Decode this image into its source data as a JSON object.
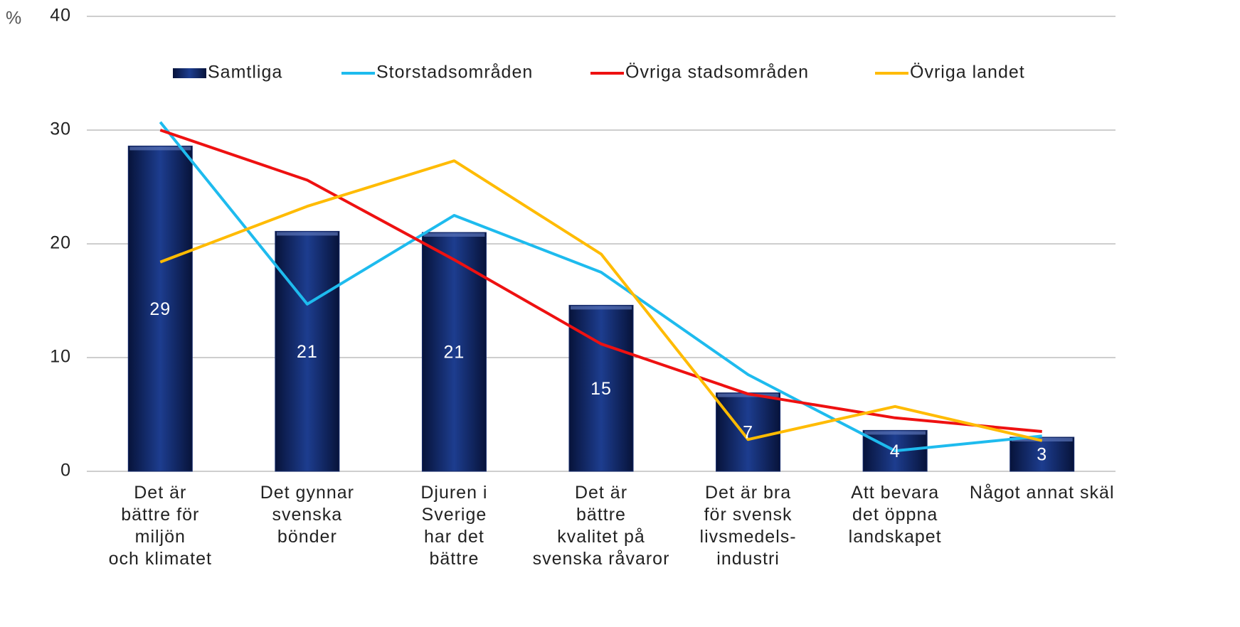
{
  "chart_data": {
    "type": "combo",
    "y_label": "%",
    "categories": [
      [
        "Det är",
        "bättre för",
        "miljön",
        "och klimatet"
      ],
      [
        "Det gynnar",
        "svenska",
        "bönder"
      ],
      [
        "Djuren i",
        "Sverige",
        "har det",
        "bättre"
      ],
      [
        "Det är",
        "bättre",
        "kvalitet på",
        "svenska råvaror"
      ],
      [
        "Det är bra",
        "för svensk",
        "livsmedels-",
        "industri"
      ],
      [
        "Att bevara",
        "det öppna",
        "landskapet"
      ],
      [
        "Något annat skäl"
      ]
    ],
    "series": [
      {
        "name": "Samtliga",
        "type": "bar",
        "color": "#13296b",
        "values": [
          28.6,
          21.1,
          21.0,
          14.6,
          6.9,
          3.6,
          3.0
        ],
        "value_labels": [
          "29",
          "21",
          "21",
          "15",
          "7",
          "4",
          "3"
        ]
      },
      {
        "name": "Storstadsområden",
        "type": "line",
        "color": "#1ebbee",
        "values": [
          30.7,
          14.7,
          22.5,
          17.5,
          8.5,
          1.8,
          3.1
        ]
      },
      {
        "name": "Övriga stadsområden",
        "type": "line",
        "color": "#ee1111",
        "values": [
          30.0,
          25.6,
          18.6,
          11.2,
          6.8,
          4.7,
          3.5
        ]
      },
      {
        "name": "Övriga landet",
        "type": "line",
        "color": "#ffbb00",
        "values": [
          18.4,
          23.3,
          27.3,
          19.1,
          2.8,
          5.7,
          2.7
        ]
      }
    ],
    "ylim": [
      0,
      40
    ],
    "yticks": [
      0,
      10,
      20,
      30,
      40
    ],
    "grid": true,
    "legend": "top"
  }
}
